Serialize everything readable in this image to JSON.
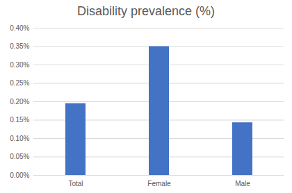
{
  "chart_data": {
    "type": "bar",
    "title": "Disability prevalence (%)",
    "categories": [
      "Total",
      "Female",
      "Male"
    ],
    "values": [
      0.195,
      0.35,
      0.143
    ],
    "color": "#4472c4",
    "ylim": [
      0,
      0.4
    ],
    "yticks": [
      {
        "value": 0,
        "label": "0.00%"
      },
      {
        "value": 0.05,
        "label": "0.05%"
      },
      {
        "value": 0.1,
        "label": "0.10%"
      },
      {
        "value": 0.15,
        "label": "0.15%"
      },
      {
        "value": 0.2,
        "label": "0.20%"
      },
      {
        "value": 0.25,
        "label": "0.25%"
      },
      {
        "value": 0.3,
        "label": "0.30%"
      },
      {
        "value": 0.35,
        "label": "0.35%"
      },
      {
        "value": 0.4,
        "label": "0.40%"
      }
    ],
    "grid": true
  }
}
